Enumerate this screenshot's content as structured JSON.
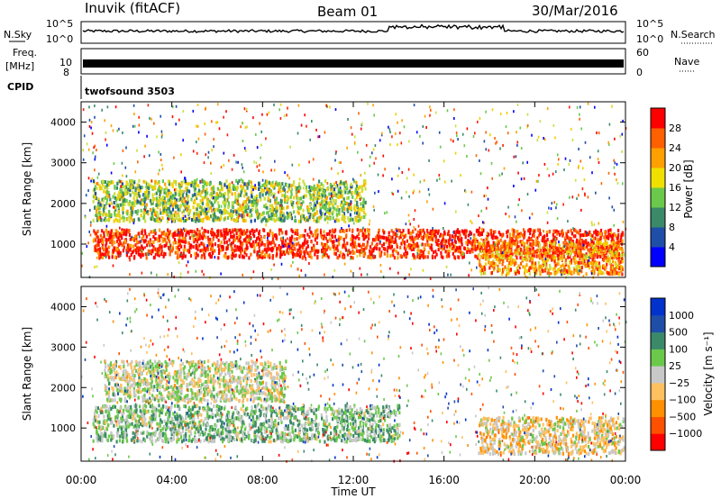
{
  "header": {
    "station": "Inuvik (fitACF)",
    "beam": "Beam 01",
    "date": "30/Mar/2016"
  },
  "noise_panel": {
    "left_label": "N.Sky",
    "right_label": "N.Search",
    "ticks_left": [
      "10^5",
      "10^0"
    ],
    "ticks_right": [
      "10^5",
      "10^0"
    ]
  },
  "freq_panel": {
    "left_label_1": "Freq.",
    "left_label_2": "[MHz]",
    "left_ticks": [
      "10",
      "8"
    ],
    "right_label": "Nave",
    "right_ticks": [
      "60",
      "0"
    ]
  },
  "cpid": {
    "label": "CPID",
    "value": "twofsound 3503"
  },
  "power_panel": {
    "ylabel": "Slant Range [km]",
    "yticks": [
      "4000",
      "3000",
      "2000",
      "1000"
    ],
    "colorbar_label": "Power [dB]",
    "colorbar_ticks": [
      "28",
      "24",
      "20",
      "16",
      "12",
      "8",
      "4"
    ],
    "colorbar_colors": [
      "#0000ff",
      "#1f4ea8",
      "#3a8a6a",
      "#6ac94a",
      "#f0e000",
      "#ffa000",
      "#ff6000",
      "#ff0000"
    ]
  },
  "velocity_panel": {
    "ylabel": "Slant Range [km]",
    "yticks": [
      "4000",
      "3000",
      "2000",
      "1000"
    ],
    "colorbar_label": "Velocity [m s⁻¹]",
    "colorbar_ticks": [
      "1000",
      "500",
      "100",
      "25",
      "−25",
      "−100",
      "−500",
      "−1000"
    ],
    "colorbar_colors": [
      "#ff0000",
      "#ff5000",
      "#ff9000",
      "#ffc060",
      "#c8c8c8",
      "#6ac94a",
      "#3a8a6a",
      "#1f4ea8",
      "#0033cc"
    ]
  },
  "time_axis": {
    "label": "Time UT",
    "ticks": [
      "00:00",
      "04:00",
      "08:00",
      "12:00",
      "16:00",
      "20:00",
      "00:00"
    ]
  },
  "chart_data": {
    "type": "heatmap",
    "title": "Inuvik (fitACF) Beam 01 30/Mar/2016",
    "xlabel": "Time UT",
    "ylabel": "Slant Range [km]",
    "x_range": [
      "00:00",
      "24:00"
    ],
    "y_range_km": [
      180,
      4500
    ],
    "panels": [
      {
        "name": "Power",
        "units": "dB",
        "color_range": [
          0,
          30
        ],
        "features": [
          {
            "desc": "main scatter band",
            "time_range_h": [
              0.5,
              23.9
            ],
            "range_km": [
              700,
              1400
            ],
            "value": 26
          },
          {
            "desc": "upper band",
            "time_range_h": [
              0.5,
              12.5
            ],
            "range_km": [
              1600,
              2600
            ],
            "value": 12
          },
          {
            "desc": "late band",
            "time_range_h": [
              17.5,
              23.9
            ],
            "range_km": [
              300,
              1100
            ],
            "value": 20
          }
        ]
      },
      {
        "name": "Velocity",
        "units": "m s^-1",
        "color_range": [
          -1000,
          1000
        ],
        "features": [
          {
            "desc": "main band mixed",
            "time_range_h": [
              0.5,
              14.0
            ],
            "range_km": [
              700,
              1600
            ],
            "value": 200
          },
          {
            "desc": "upper ground scatter",
            "time_range_h": [
              1.0,
              9.0
            ],
            "range_km": [
              1700,
              2700
            ],
            "value": 0
          },
          {
            "desc": "late band",
            "time_range_h": [
              17.5,
              23.9
            ],
            "range_km": [
              400,
              1300
            ],
            "value": -150
          }
        ]
      }
    ]
  }
}
